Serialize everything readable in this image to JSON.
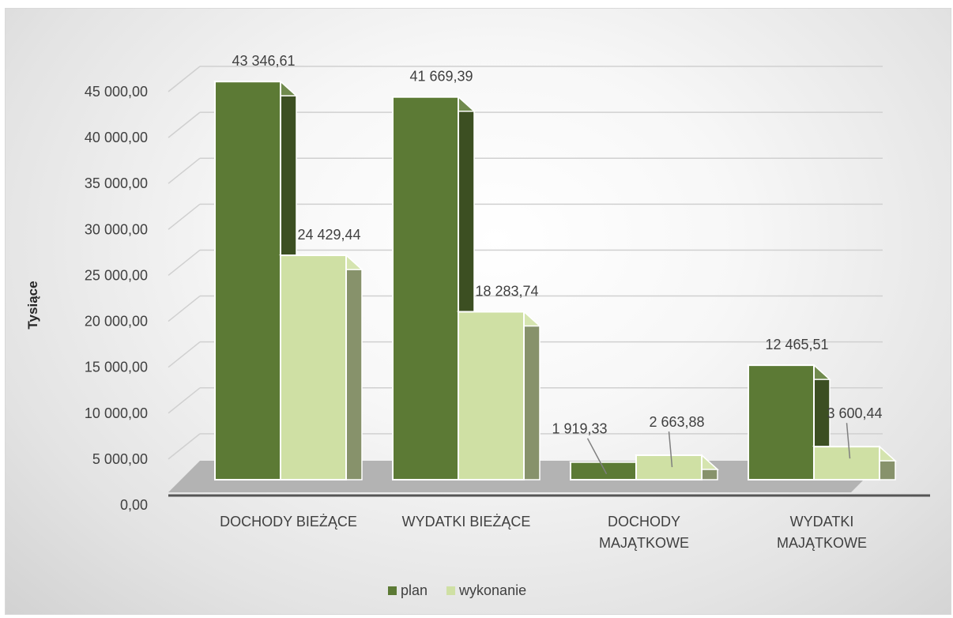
{
  "chart_data": {
    "type": "bar",
    "style": "3d-clustered-column",
    "categories": [
      [
        "DOCHODY BIEŻĄCE"
      ],
      [
        "WYDATKI BIEŻĄCE"
      ],
      [
        "DOCHODY",
        "MAJĄTKOWE"
      ],
      [
        "WYDATKI",
        "MAJĄTKOWE"
      ]
    ],
    "series": [
      {
        "name": "plan",
        "color": "#5c7a35",
        "values": [
          43346.61,
          41669.39,
          1919.33,
          12465.51
        ],
        "labels": [
          "43 346,61",
          "41 669,39",
          "1 919,33",
          "12 465,51"
        ]
      },
      {
        "name": "wykonanie",
        "color": "#cfe0a4",
        "values": [
          24429.44,
          18283.74,
          2663.88,
          3600.44
        ],
        "labels": [
          "24 429,44",
          "18 283,74",
          "2 663,88",
          "3 600,44"
        ]
      }
    ],
    "ylabel": "Tysiące",
    "ylim": [
      0,
      45000
    ],
    "yticks": [
      0,
      5000,
      10000,
      15000,
      20000,
      25000,
      30000,
      35000,
      40000,
      45000
    ],
    "ytick_labels": [
      "0,00",
      "5 000,00",
      "10 000,00",
      "15 000,00",
      "20 000,00",
      "25 000,00",
      "30 000,00",
      "35 000,00",
      "40 000,00",
      "45 000,00"
    ],
    "grid": true,
    "legend_position": "bottom"
  }
}
